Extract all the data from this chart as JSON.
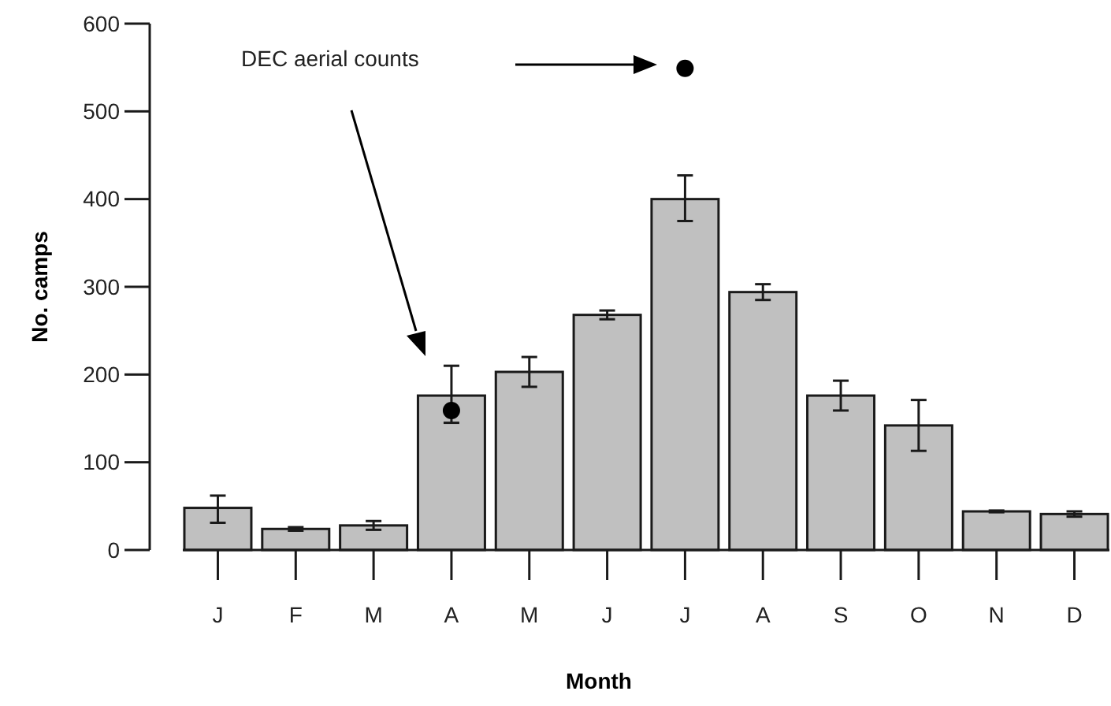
{
  "chart_data": {
    "type": "bar",
    "xlabel": "Month",
    "ylabel": "No. camps",
    "categories": [
      "J",
      "F",
      "M",
      "A",
      "M",
      "J",
      "J",
      "A",
      "S",
      "O",
      "N",
      "D"
    ],
    "ylim": [
      0,
      600
    ],
    "yticks": [
      0,
      100,
      200,
      300,
      400,
      500,
      600
    ],
    "grid": false,
    "series": [
      {
        "color": "#c0c0c0",
        "values": [
          48,
          24,
          28,
          176,
          203,
          268,
          400,
          294,
          176,
          142,
          44,
          41
        ],
        "errors": [
          [
            31,
            62
          ],
          2,
          5,
          [
            145,
            210
          ],
          17,
          5,
          [
            375,
            427
          ],
          9,
          17,
          29,
          1,
          3
        ]
      },
      {
        "type": "scatter",
        "color": "#000000",
        "marker": "circle",
        "values": [
          null,
          null,
          null,
          159,
          null,
          null,
          549,
          null,
          null,
          null,
          null,
          null
        ]
      }
    ],
    "annotations": [
      "DEC aerial counts"
    ]
  }
}
